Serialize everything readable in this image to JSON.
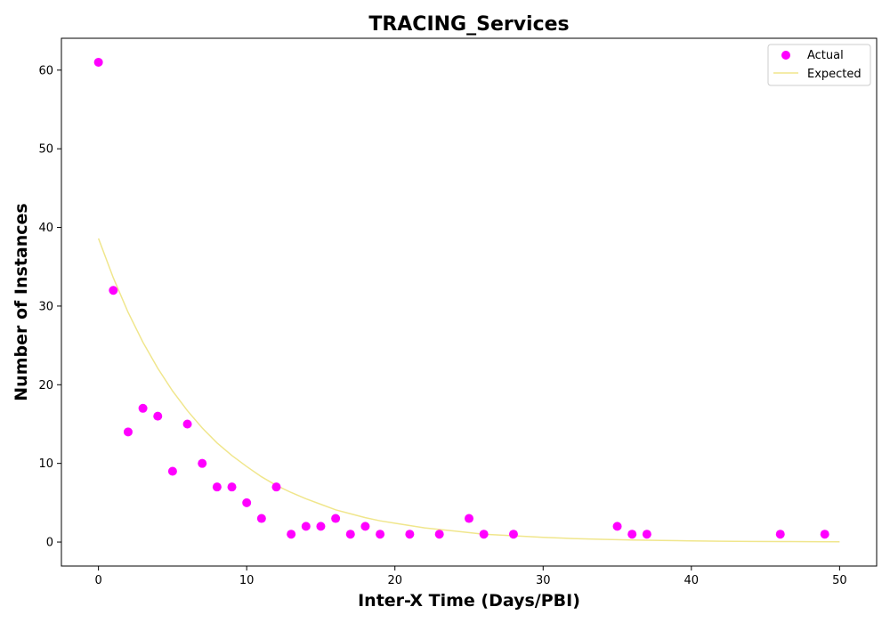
{
  "chart_data": {
    "type": "scatter",
    "title": "TRACING_Services",
    "xlabel": "Inter-X Time (Days/PBI)",
    "ylabel": "Number of Instances",
    "xlim": [
      -2.5,
      52.5
    ],
    "ylim": [
      -3.05,
      64.05
    ],
    "xticks": [
      0,
      10,
      20,
      30,
      40,
      50
    ],
    "yticks": [
      0,
      10,
      20,
      30,
      40,
      50,
      60
    ],
    "grid": false,
    "legend_position": "top-right",
    "series": [
      {
        "name": "Actual",
        "kind": "scatter",
        "color": "#ff00ff",
        "x": [
          0,
          1,
          2,
          3,
          4,
          5,
          6,
          7,
          8,
          9,
          10,
          11,
          12,
          13,
          14,
          15,
          16,
          17,
          18,
          19,
          21,
          23,
          25,
          26,
          28,
          35,
          36,
          37,
          46,
          49
        ],
        "y": [
          61,
          32,
          14,
          17,
          16,
          9,
          15,
          10,
          7,
          7,
          5,
          3,
          7,
          1,
          2,
          2,
          3,
          1,
          2,
          1,
          1,
          1,
          3,
          1,
          1,
          2,
          1,
          1,
          1,
          1
        ]
      },
      {
        "name": "Expected",
        "kind": "line",
        "color": "#f0e68c",
        "x": [
          0,
          1,
          2,
          3,
          4,
          5,
          6,
          7,
          8,
          9,
          10,
          11,
          12,
          13,
          14,
          15,
          16,
          17,
          18,
          19,
          20,
          22,
          24,
          26,
          28,
          30,
          32,
          34,
          36,
          38,
          40,
          42,
          44,
          46,
          48,
          50
        ],
        "y": [
          38.6,
          33.6,
          29.2,
          25.4,
          22.1,
          19.2,
          16.7,
          14.5,
          12.6,
          11.0,
          9.6,
          8.3,
          7.2,
          6.3,
          5.5,
          4.8,
          4.1,
          3.6,
          3.1,
          2.7,
          2.4,
          1.8,
          1.4,
          1.0,
          0.8,
          0.6,
          0.45,
          0.34,
          0.26,
          0.2,
          0.15,
          0.11,
          0.08,
          0.06,
          0.05,
          0.04
        ]
      }
    ]
  }
}
